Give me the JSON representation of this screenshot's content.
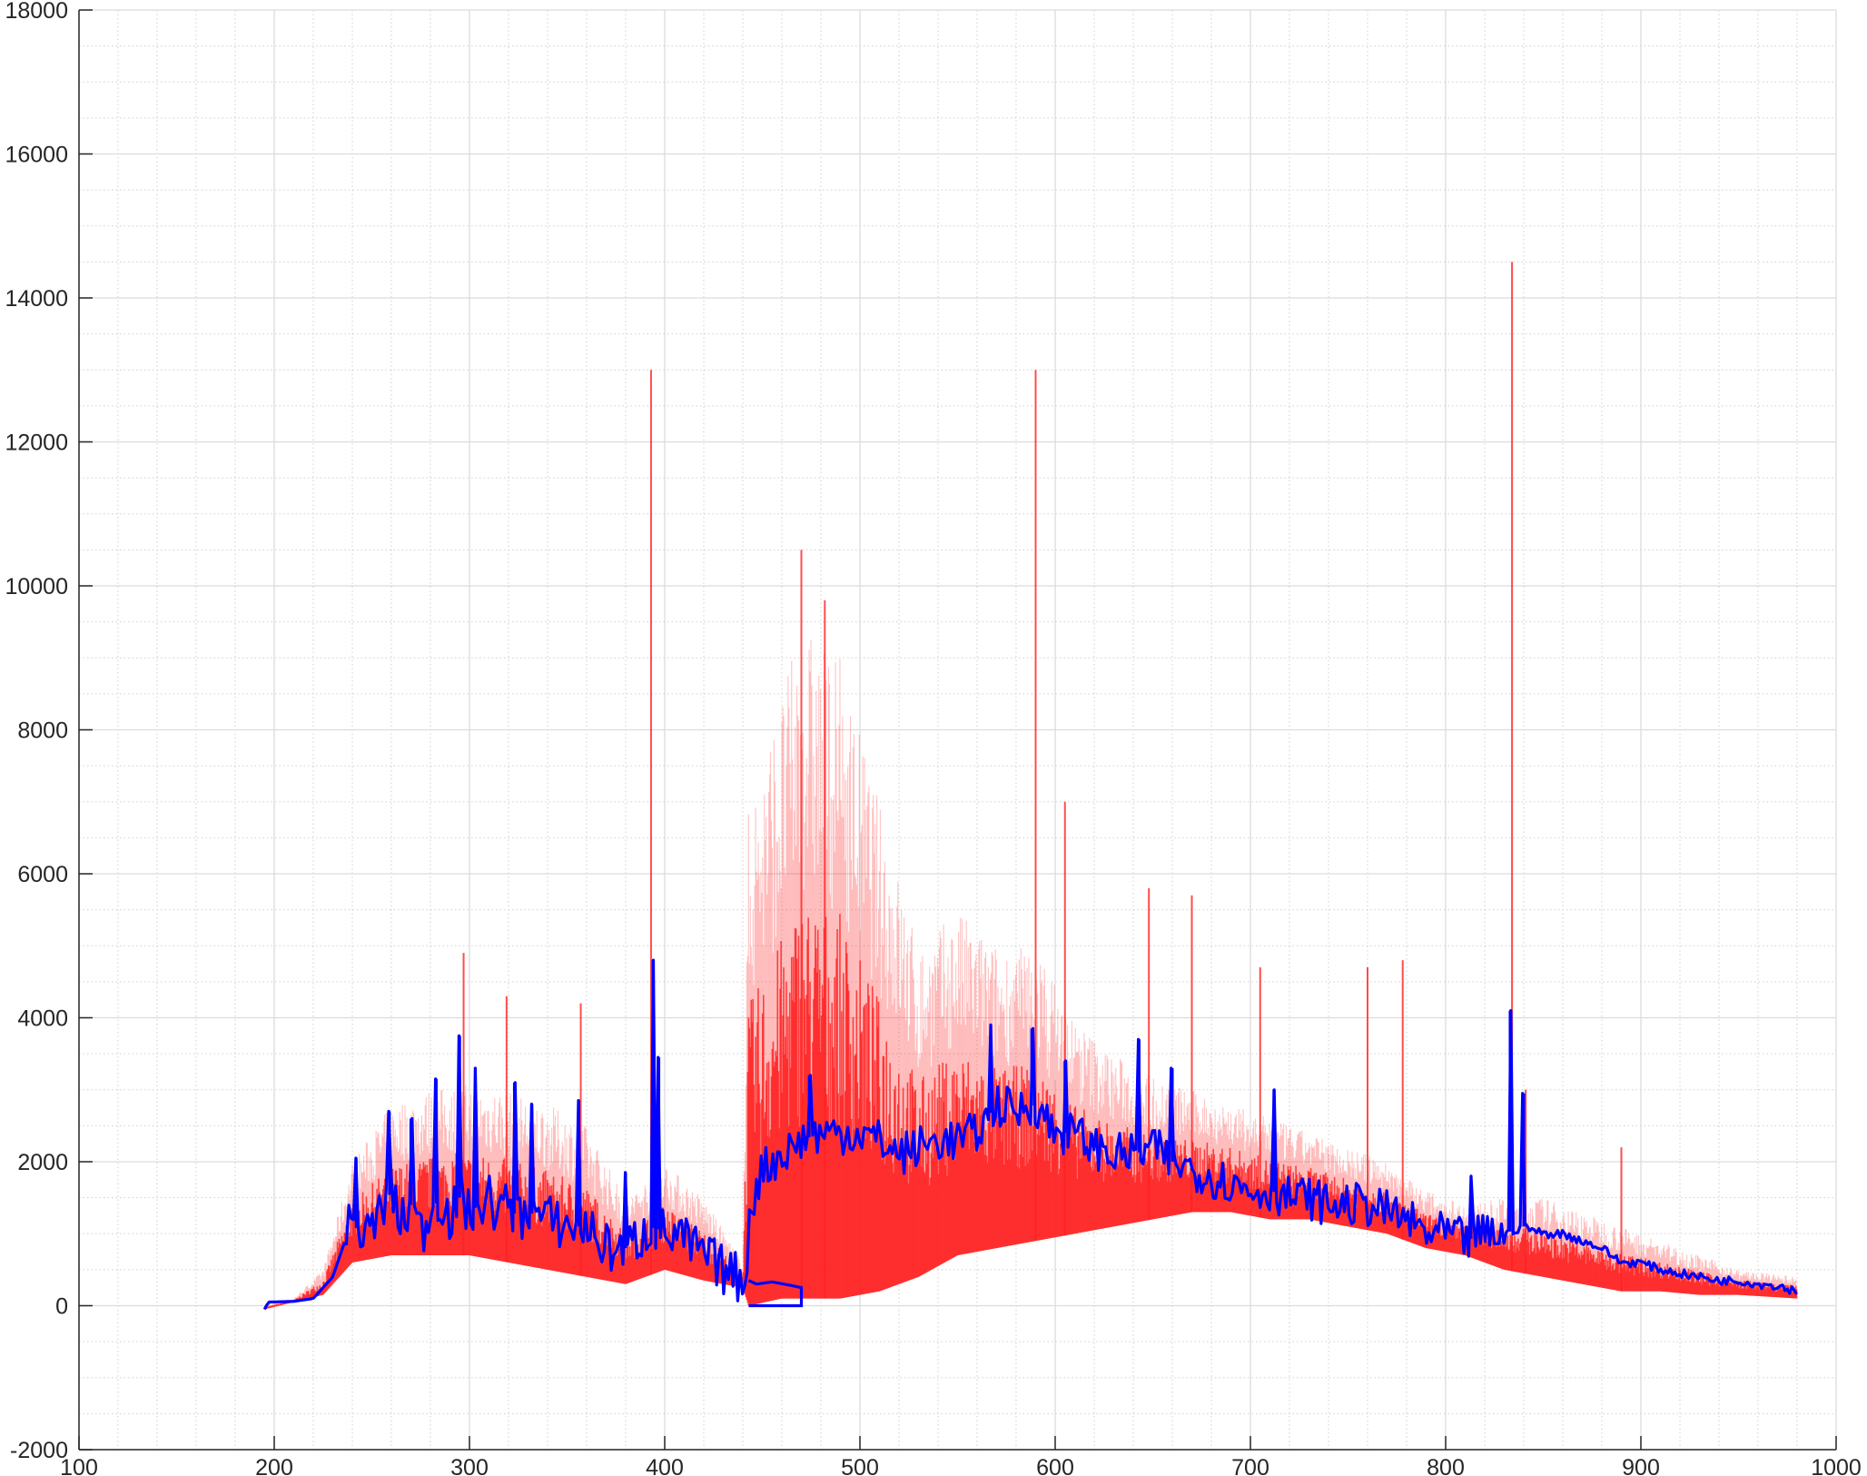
{
  "chart_data": {
    "type": "line",
    "title": "",
    "xlabel": "",
    "ylabel": "",
    "xlim": [
      100,
      1000
    ],
    "ylim": [
      -2000,
      18000
    ],
    "grid": true,
    "minor_grid": true,
    "x_ticks": [
      "100",
      "200",
      "300",
      "400",
      "500",
      "600",
      "700",
      "800",
      "900",
      "1000"
    ],
    "y_ticks": [
      "-2000",
      "0",
      "2000",
      "4000",
      "6000",
      "8000",
      "10000",
      "12000",
      "14000",
      "16000",
      "18000"
    ],
    "colors": {
      "individual_spectra": "#ff2020",
      "mean_spectrum": "#0000ff"
    },
    "series": [
      {
        "role": "mean",
        "color": "#0000ff",
        "x": [
          195,
          197,
          210,
          220,
          230,
          240,
          245,
          250,
          255,
          260,
          265,
          270,
          275,
          280,
          285,
          290,
          295,
          300,
          305,
          310,
          315,
          320,
          325,
          330,
          340,
          350,
          360,
          370,
          380,
          390,
          395,
          400,
          410,
          420,
          430,
          440,
          442,
          443,
          450,
          460,
          470,
          480,
          490,
          500,
          510,
          520,
          530,
          540,
          550,
          560,
          570,
          580,
          590,
          600,
          610,
          620,
          630,
          640,
          650,
          660,
          670,
          680,
          690,
          700,
          710,
          720,
          730,
          740,
          750,
          760,
          770,
          780,
          790,
          800,
          810,
          820,
          830,
          840,
          850,
          860,
          870,
          880,
          890,
          900,
          910,
          920,
          930,
          940,
          950,
          960,
          970,
          980,
          981
        ],
        "y": [
          -50,
          50,
          60,
          100,
          400,
          1200,
          900,
          1100,
          1300,
          1600,
          1100,
          1400,
          1000,
          1300,
          1500,
          1200,
          1500,
          1300,
          1400,
          1500,
          1300,
          1400,
          1200,
          1300,
          1200,
          1100,
          1100,
          800,
          800,
          1000,
          1100,
          1000,
          900,
          700,
          500,
          350,
          250,
          1300,
          1900,
          2100,
          2300,
          2400,
          2400,
          2400,
          2300,
          2100,
          2200,
          2300,
          2300,
          2400,
          2800,
          2700,
          2800,
          2400,
          2400,
          2200,
          2100,
          2100,
          2200,
          2000,
          1900,
          1800,
          1700,
          1600,
          1600,
          1500,
          1500,
          1400,
          1400,
          1400,
          1300,
          1200,
          1000,
          1000,
          900,
          1000,
          1000,
          1100,
          1000,
          1000,
          900,
          800,
          600,
          600,
          500,
          450,
          400,
          350,
          350,
          300,
          280,
          200,
          0
        ],
        "spikes": [
          [
            242,
            2050
          ],
          [
            259,
            2700
          ],
          [
            270,
            2600
          ],
          [
            283,
            3150
          ],
          [
            295,
            3750
          ],
          [
            303,
            3300
          ],
          [
            323,
            3100
          ],
          [
            332,
            2800
          ],
          [
            356,
            2850
          ],
          [
            380,
            1850
          ],
          [
            394,
            4800
          ],
          [
            397,
            3450
          ],
          [
            474,
            3200
          ],
          [
            567,
            3900
          ],
          [
            588,
            3850
          ],
          [
            605,
            3400
          ],
          [
            643,
            3700
          ],
          [
            660,
            3300
          ],
          [
            712,
            3000
          ],
          [
            813,
            1800
          ],
          [
            833,
            4100
          ],
          [
            840,
            2950
          ]
        ]
      },
      {
        "role": "individual spectra band",
        "color": "#ff2020",
        "x": [
          195,
          210,
          225,
          240,
          260,
          280,
          300,
          320,
          340,
          360,
          380,
          400,
          420,
          440,
          443,
          460,
          470,
          490,
          510,
          530,
          550,
          570,
          590,
          610,
          630,
          650,
          670,
          690,
          710,
          730,
          750,
          770,
          790,
          810,
          830,
          850,
          870,
          890,
          910,
          930,
          950,
          980
        ],
        "lower": [
          -50,
          50,
          150,
          600,
          700,
          700,
          700,
          600,
          500,
          400,
          300,
          500,
          350,
          250,
          0,
          100,
          100,
          100,
          200,
          400,
          700,
          800,
          900,
          1000,
          1100,
          1200,
          1300,
          1300,
          1200,
          1200,
          1100,
          1000,
          800,
          700,
          500,
          400,
          300,
          200,
          200,
          150,
          150,
          100
        ],
        "upper": [
          0,
          100,
          500,
          2000,
          2800,
          3000,
          3100,
          3000,
          2800,
          2500,
          1500,
          2000,
          1500,
          600,
          7000,
          8500,
          9500,
          9000,
          7000,
          5000,
          5500,
          5000,
          5000,
          4000,
          3500,
          3200,
          3000,
          2800,
          2600,
          2400,
          2200,
          2000,
          1600,
          1400,
          1500,
          1500,
          1300,
          1100,
          900,
          700,
          500,
          400
        ],
        "spikes": [
          [
            297,
            4900
          ],
          [
            319,
            4300
          ],
          [
            357,
            4200
          ],
          [
            393,
            13000
          ],
          [
            470,
            10500
          ],
          [
            482,
            9800
          ],
          [
            590,
            13000
          ],
          [
            605,
            7000
          ],
          [
            648,
            5800
          ],
          [
            670,
            5700
          ],
          [
            705,
            4700
          ],
          [
            760,
            4700
          ],
          [
            778,
            4800
          ],
          [
            834,
            14500
          ],
          [
            841,
            3000
          ],
          [
            890,
            2200
          ]
        ]
      }
    ]
  }
}
